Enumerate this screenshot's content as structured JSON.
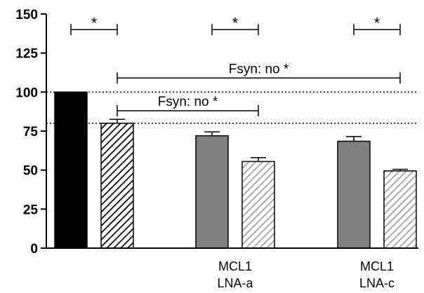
{
  "chart_data": {
    "type": "bar",
    "ylim": [
      0,
      150
    ],
    "yticks": [
      0,
      25,
      50,
      75,
      100,
      125,
      150
    ],
    "grid": false,
    "bars": [
      {
        "value": 100,
        "error": 0,
        "fill": "solid",
        "color": "#000000",
        "group": 0
      },
      {
        "value": 80,
        "error": 2.5,
        "fill": "hatched",
        "color": "#000000",
        "group": 0
      },
      {
        "value": 72,
        "error": 2.5,
        "fill": "solid",
        "color": "#808080",
        "group": 1
      },
      {
        "value": 55.5,
        "error": 2.5,
        "fill": "hatched",
        "color": "#a0a0a0",
        "group": 1
      },
      {
        "value": 68.5,
        "error": 3,
        "fill": "solid",
        "color": "#808080",
        "group": 2
      },
      {
        "value": 49.5,
        "error": 1,
        "fill": "hatched",
        "color": "#a0a0a0",
        "group": 2
      }
    ],
    "category_labels": [
      {
        "group": 1,
        "lines": [
          "MCL1",
          "LNA-a"
        ]
      },
      {
        "group": 2,
        "lines": [
          "MCL1",
          "LNA-c"
        ]
      }
    ],
    "reference_lines": [
      100,
      80
    ],
    "brackets": [
      {
        "from_bar": 0,
        "to_bar": 1,
        "y": 140,
        "label": "*",
        "style": "star"
      },
      {
        "from_bar": 2,
        "to_bar": 3,
        "y": 140,
        "label": "*",
        "style": "star"
      },
      {
        "from_bar": 4,
        "to_bar": 5,
        "y": 140,
        "label": "*",
        "style": "star"
      },
      {
        "from_bar": 1,
        "to_bar": 5,
        "y": 109,
        "label": "Fsyn: no *",
        "style": "text"
      },
      {
        "from_bar": 1,
        "to_bar": 3,
        "y": 88,
        "label": "Fsyn: no *",
        "style": "text"
      }
    ]
  }
}
